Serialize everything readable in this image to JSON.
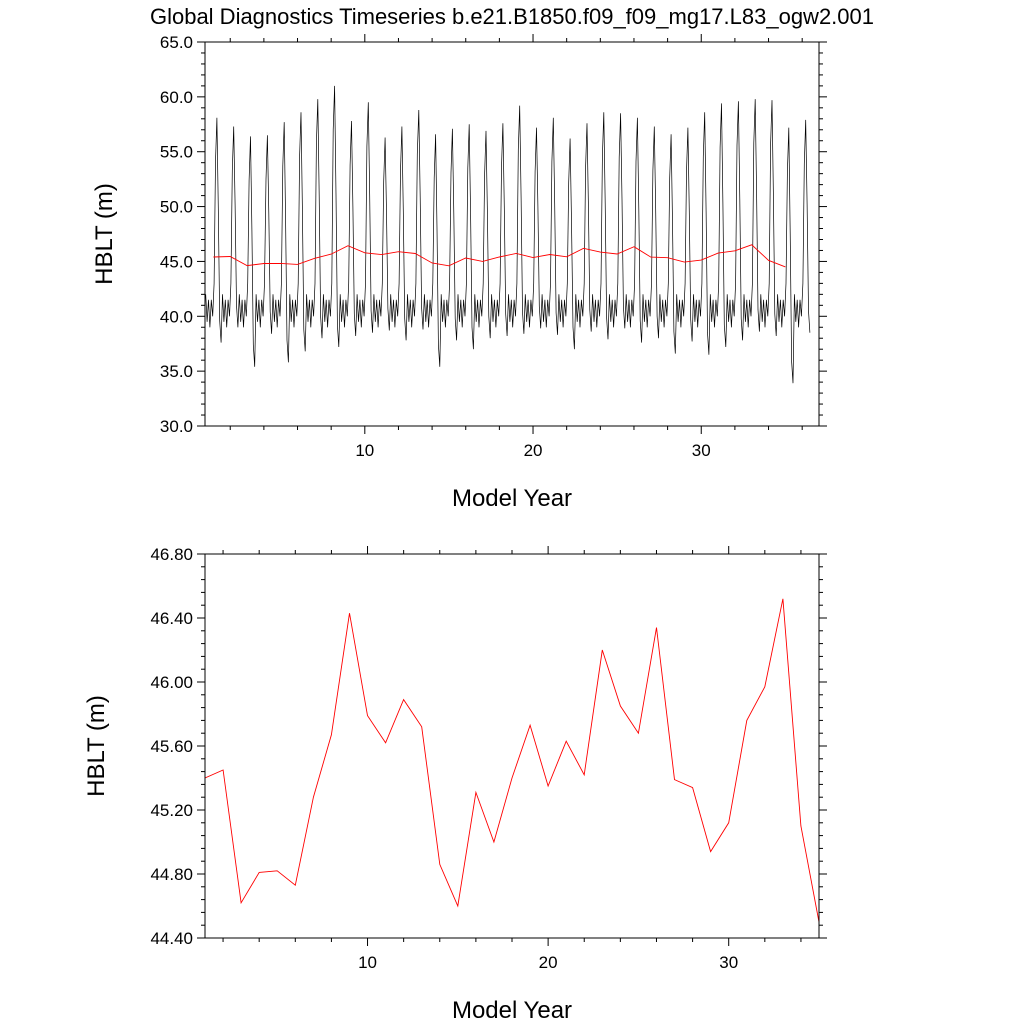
{
  "title": "Global Diagnostics Timeseries b.e21.B1850.f09_f09_mg17.L83_ogw2.001",
  "colors": {
    "monthly": "#000000",
    "annual": "#ff0000",
    "axes": "#000000"
  },
  "chart_data": [
    {
      "type": "line",
      "xlabel": "Model Year",
      "ylabel": "HBLT (m)",
      "xlim": [
        0.5,
        37.0
      ],
      "ylim": [
        30.0,
        65.0
      ],
      "x_ticks": [
        10,
        20,
        30
      ],
      "x_tick_labels": [
        "10",
        "20",
        "30"
      ],
      "y_ticks": [
        30,
        35,
        40,
        45,
        50,
        55,
        60,
        65
      ],
      "y_tick_labels": [
        "30.0",
        "35.0",
        "40.0",
        "45.0",
        "50.0",
        "55.0",
        "60.0",
        "65.0"
      ],
      "grid": false,
      "series": [
        {
          "resolution": "monthly",
          "color": "#000000",
          "x_start": 0.54,
          "x_step": 0.0833333,
          "annual_maxima": [
            58.1,
            57.3,
            56.4,
            56.5,
            57.7,
            58.6,
            59.8,
            61.0,
            57.8,
            59.5,
            56.3,
            57.3,
            58.8,
            56.6,
            57.1,
            57.5,
            56.9,
            57.6,
            59.2,
            57.2,
            58.1,
            56.2,
            57.6,
            58.6,
            58.5,
            58.1,
            57.3,
            56.6,
            57.2,
            58.6,
            59.4,
            59.6,
            59.8,
            59.7,
            57.2,
            57.9
          ],
          "annual_minima": [
            37.6,
            39.0,
            35.4,
            38.4,
            35.8,
            36.8,
            38.0,
            37.2,
            38.2,
            38.5,
            38.7,
            37.8,
            38.8,
            35.4,
            37.8,
            37.0,
            38.0,
            38.2,
            38.4,
            38.9,
            38.3,
            37.0,
            38.6,
            37.9,
            38.9,
            37.6,
            38.0,
            36.6,
            37.7,
            36.5,
            37.2,
            37.8,
            38.6,
            38.2,
            33.9,
            38.5
          ],
          "monthly_shape": [
            42.0,
            39.5,
            41.5,
            39.0,
            41.5,
            40.0,
            43.0,
            1.0,
            0.98,
            0.8,
            0.6,
            42.5
          ]
        },
        {
          "resolution": "annual",
          "color": "#ff0000",
          "x": [
            1.0,
            2.0,
            3.0,
            4.0,
            5.0,
            6.0,
            7.0,
            8.0,
            9.0,
            10.0,
            11.0,
            12.0,
            13.0,
            14.0,
            15.0,
            16.0,
            17.0,
            18.0,
            19.0,
            20.0,
            21.0,
            22.0,
            23.0,
            24.0,
            25.0,
            26.0,
            27.0,
            28.0,
            29.0,
            30.0,
            31.0,
            32.0,
            33.0,
            34.0,
            35.0
          ],
          "y": [
            45.4,
            45.45,
            44.62,
            44.81,
            44.82,
            44.73,
            45.28,
            45.67,
            46.43,
            45.79,
            45.62,
            45.89,
            45.72,
            44.86,
            44.6,
            45.31,
            45.0,
            45.4,
            45.73,
            45.35,
            45.63,
            45.42,
            46.2,
            45.85,
            45.68,
            46.34,
            45.39,
            45.34,
            44.94,
            45.12,
            45.76,
            45.97,
            46.52,
            45.1,
            44.5
          ]
        }
      ]
    },
    {
      "type": "line",
      "xlabel": "Model Year",
      "ylabel": "HBLT (m)",
      "xlim": [
        1.0,
        35.0
      ],
      "ylim": [
        44.4,
        46.8
      ],
      "x_ticks": [
        10,
        20,
        30
      ],
      "x_tick_labels": [
        "10",
        "20",
        "30"
      ],
      "y_ticks": [
        44.4,
        44.8,
        45.2,
        45.6,
        46.0,
        46.4,
        46.8
      ],
      "y_tick_labels": [
        "44.40",
        "44.80",
        "45.20",
        "45.60",
        "46.00",
        "46.40",
        "46.80"
      ],
      "grid": false,
      "series": [
        {
          "resolution": "annual",
          "color": "#ff0000",
          "x": [
            1.0,
            2.0,
            3.0,
            4.0,
            5.0,
            6.0,
            7.0,
            8.0,
            9.0,
            10.0,
            11.0,
            12.0,
            13.0,
            14.0,
            15.0,
            16.0,
            17.0,
            18.0,
            19.0,
            20.0,
            21.0,
            22.0,
            23.0,
            24.0,
            25.0,
            26.0,
            27.0,
            28.0,
            29.0,
            30.0,
            31.0,
            32.0,
            33.0,
            34.0,
            35.0
          ],
          "y": [
            45.4,
            45.45,
            44.62,
            44.81,
            44.82,
            44.73,
            45.28,
            45.67,
            46.43,
            45.79,
            45.62,
            45.89,
            45.72,
            44.86,
            44.6,
            45.31,
            45.0,
            45.4,
            45.73,
            45.35,
            45.63,
            45.42,
            46.2,
            45.85,
            45.68,
            46.34,
            45.39,
            45.34,
            44.94,
            45.12,
            45.76,
            45.97,
            46.52,
            45.1,
            44.5
          ]
        }
      ]
    }
  ]
}
